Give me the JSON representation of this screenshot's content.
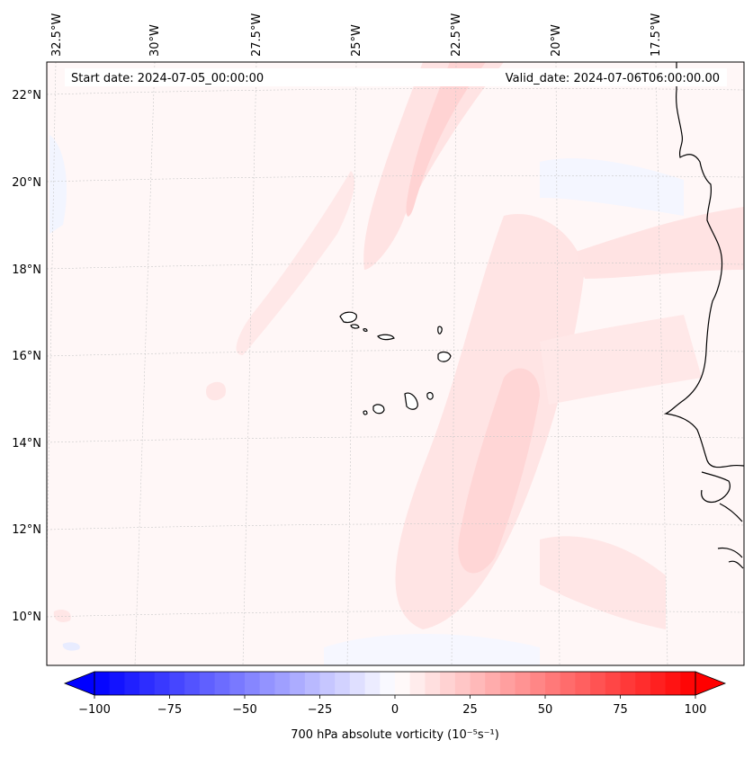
{
  "map": {
    "header": {
      "start_date": "Start date: 2024-07-05_00:00:00",
      "valid_date": "Valid_date: 2024-07-06T06:00:00.00"
    },
    "longitude_labels": [
      "32.5°W",
      "30°W",
      "27.5°W",
      "25°W",
      "22.5°W",
      "20°W",
      "17.5°W"
    ],
    "latitude_labels": [
      "22°N",
      "20°N",
      "18°N",
      "16°N",
      "14°N",
      "12°N",
      "10°N"
    ],
    "gridlines": true,
    "coastline_color": "#000000"
  },
  "colorbar": {
    "label": "700 hPa absolute vorticity (10⁻⁵s⁻¹)",
    "ticks": [
      "−100",
      "−75",
      "−50",
      "−25",
      "0",
      "25",
      "50",
      "75",
      "100"
    ],
    "min": -100,
    "max": 100,
    "levels": 40,
    "extend": "both",
    "colormap": "bwr",
    "color_low": "#0000ff",
    "color_mid": "#ffffff",
    "color_high": "#ff0000"
  }
}
